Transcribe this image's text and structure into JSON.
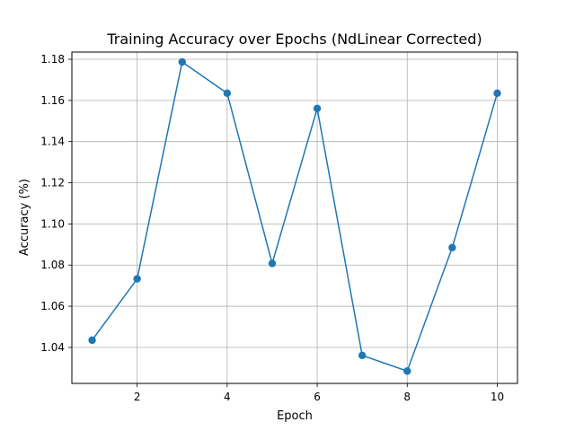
{
  "chart_data": {
    "type": "line",
    "title": "Training Accuracy over Epochs (NdLinear Corrected)",
    "xlabel": "Epoch",
    "ylabel": "Accuracy (%)",
    "x": [
      1,
      2,
      3,
      4,
      5,
      6,
      7,
      8,
      9,
      10
    ],
    "series": [
      {
        "values": [
          1.0435,
          1.0733,
          1.1787,
          1.1635,
          1.0808,
          1.1561,
          1.0361,
          1.0285,
          1.0885,
          1.1635
        ],
        "color": "#1f77b4",
        "marker": "circle"
      }
    ],
    "xlim": [
      0.55,
      10.45
    ],
    "ylim": [
      1.0225,
      1.1835
    ],
    "xticks": [
      2,
      4,
      6,
      8,
      10
    ],
    "xtick_labels": [
      "2",
      "4",
      "6",
      "8",
      "10"
    ],
    "yticks": [
      1.04,
      1.06,
      1.08,
      1.1,
      1.12,
      1.14,
      1.16,
      1.18
    ],
    "ytick_labels": [
      "1.04",
      "1.06",
      "1.08",
      "1.10",
      "1.12",
      "1.14",
      "1.16",
      "1.18"
    ],
    "grid": true,
    "colors": {
      "line": "#1f77b4",
      "grid": "#b0b0b0",
      "axis": "#000000"
    }
  }
}
